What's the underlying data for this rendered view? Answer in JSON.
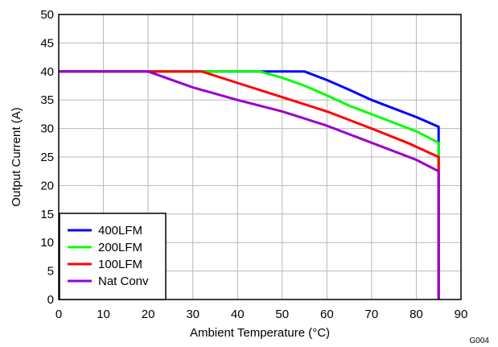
{
  "chart_data": {
    "type": "line",
    "xlabel": "Ambient Temperature (°C)",
    "ylabel": "Output Current (A)",
    "xlim": [
      0,
      90
    ],
    "ylim": [
      0,
      50
    ],
    "xticks": [
      0,
      10,
      20,
      30,
      40,
      50,
      60,
      70,
      80,
      90
    ],
    "yticks": [
      0,
      5,
      10,
      15,
      20,
      25,
      30,
      35,
      40,
      45,
      50
    ],
    "grid": true,
    "legend_position": "bottom-left",
    "figure_id": "G004",
    "series": [
      {
        "name": "400LFM",
        "color": "#0000ff",
        "points": [
          [
            0,
            40
          ],
          [
            55,
            40
          ],
          [
            60,
            38.5
          ],
          [
            65,
            36.8
          ],
          [
            70,
            35
          ],
          [
            75,
            33.5
          ],
          [
            80,
            32
          ],
          [
            85,
            30.3
          ],
          [
            85,
            0
          ]
        ]
      },
      {
        "name": "200LFM",
        "color": "#00ff00",
        "points": [
          [
            0,
            40
          ],
          [
            45,
            40
          ],
          [
            50,
            38.9
          ],
          [
            55,
            37.5
          ],
          [
            60,
            35.8
          ],
          [
            65,
            34
          ],
          [
            70,
            32.5
          ],
          [
            75,
            31
          ],
          [
            80,
            29.5
          ],
          [
            85,
            27.5
          ],
          [
            85,
            0
          ]
        ]
      },
      {
        "name": "100LFM",
        "color": "#ff0000",
        "points": [
          [
            0,
            40
          ],
          [
            32,
            40
          ],
          [
            40,
            38
          ],
          [
            50,
            35.5
          ],
          [
            60,
            33
          ],
          [
            70,
            30
          ],
          [
            78,
            27.5
          ],
          [
            85,
            25
          ],
          [
            85,
            0
          ]
        ]
      },
      {
        "name": "Nat Conv",
        "color": "#9900cc",
        "points": [
          [
            0,
            40
          ],
          [
            20,
            40
          ],
          [
            30,
            37.2
          ],
          [
            40,
            35
          ],
          [
            50,
            33
          ],
          [
            60,
            30.5
          ],
          [
            70,
            27.5
          ],
          [
            80,
            24.5
          ],
          [
            85,
            22.5
          ],
          [
            85,
            0
          ]
        ]
      }
    ]
  }
}
